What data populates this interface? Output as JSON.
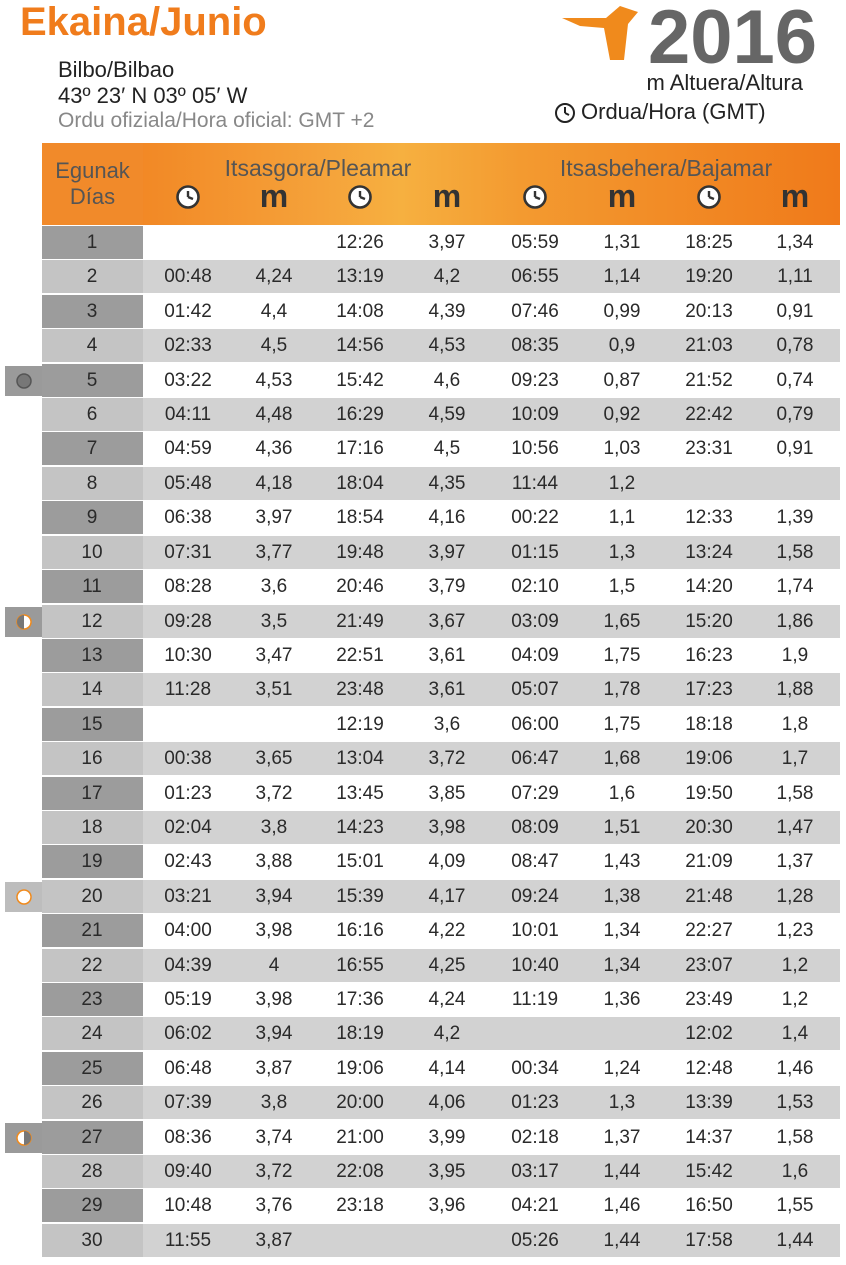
{
  "header": {
    "title": "Ekaina/Junio",
    "location": "Bilbo/Bilbao",
    "coordinates": "43º 23′ N 03º 05′ W",
    "official_time": "Ordu ofiziala/Hora oficial: GMT +2",
    "year": "2016",
    "legend_height": "m Altuera/Altura",
    "legend_time": "Ordua/Hora (GMT)"
  },
  "table": {
    "days_label": [
      "Egunak",
      "Días"
    ],
    "high_tide": "Itsasgora/Pleamar",
    "low_tide": "Itsasbehera/Bajamar",
    "units": [
      "m",
      "m",
      "m",
      "m"
    ],
    "rows": [
      [
        "1",
        null,
        null,
        "12:26",
        "3,97",
        "05:59",
        "1,31",
        "18:25",
        "1,34"
      ],
      [
        "2",
        "00:48",
        "4,24",
        "13:19",
        "4,2",
        "06:55",
        "1,14",
        "19:20",
        "1,11"
      ],
      [
        "3",
        "01:42",
        "4,4",
        "14:08",
        "4,39",
        "07:46",
        "0,99",
        "20:13",
        "0,91"
      ],
      [
        "4",
        "02:33",
        "4,5",
        "14:56",
        "4,53",
        "08:35",
        "0,9",
        "21:03",
        "0,78"
      ],
      [
        "5",
        "03:22",
        "4,53",
        "15:42",
        "4,6",
        "09:23",
        "0,87",
        "21:52",
        "0,74"
      ],
      [
        "6",
        "04:11",
        "4,48",
        "16:29",
        "4,59",
        "10:09",
        "0,92",
        "22:42",
        "0,79"
      ],
      [
        "7",
        "04:59",
        "4,36",
        "17:16",
        "4,5",
        "10:56",
        "1,03",
        "23:31",
        "0,91"
      ],
      [
        "8",
        "05:48",
        "4,18",
        "18:04",
        "4,35",
        "11:44",
        "1,2",
        null,
        null
      ],
      [
        "9",
        "06:38",
        "3,97",
        "18:54",
        "4,16",
        "00:22",
        "1,1",
        "12:33",
        "1,39"
      ],
      [
        "10",
        "07:31",
        "3,77",
        "19:48",
        "3,97",
        "01:15",
        "1,3",
        "13:24",
        "1,58"
      ],
      [
        "11",
        "08:28",
        "3,6",
        "20:46",
        "3,79",
        "02:10",
        "1,5",
        "14:20",
        "1,74"
      ],
      [
        "12",
        "09:28",
        "3,5",
        "21:49",
        "3,67",
        "03:09",
        "1,65",
        "15:20",
        "1,86"
      ],
      [
        "13",
        "10:30",
        "3,47",
        "22:51",
        "3,61",
        "04:09",
        "1,75",
        "16:23",
        "1,9"
      ],
      [
        "14",
        "11:28",
        "3,51",
        "23:48",
        "3,61",
        "05:07",
        "1,78",
        "17:23",
        "1,88"
      ],
      [
        "15",
        null,
        null,
        "12:19",
        "3,6",
        "06:00",
        "1,75",
        "18:18",
        "1,8"
      ],
      [
        "16",
        "00:38",
        "3,65",
        "13:04",
        "3,72",
        "06:47",
        "1,68",
        "19:06",
        "1,7"
      ],
      [
        "17",
        "01:23",
        "3,72",
        "13:45",
        "3,85",
        "07:29",
        "1,6",
        "19:50",
        "1,58"
      ],
      [
        "18",
        "02:04",
        "3,8",
        "14:23",
        "3,98",
        "08:09",
        "1,51",
        "20:30",
        "1,47"
      ],
      [
        "19",
        "02:43",
        "3,88",
        "15:01",
        "4,09",
        "08:47",
        "1,43",
        "21:09",
        "1,37"
      ],
      [
        "20",
        "03:21",
        "3,94",
        "15:39",
        "4,17",
        "09:24",
        "1,38",
        "21:48",
        "1,28"
      ],
      [
        "21",
        "04:00",
        "3,98",
        "16:16",
        "4,22",
        "10:01",
        "1,34",
        "22:27",
        "1,23"
      ],
      [
        "22",
        "04:39",
        "4",
        "16:55",
        "4,25",
        "10:40",
        "1,34",
        "23:07",
        "1,2"
      ],
      [
        "23",
        "05:19",
        "3,98",
        "17:36",
        "4,24",
        "11:19",
        "1,36",
        "23:49",
        "1,2"
      ],
      [
        "24",
        "06:02",
        "3,94",
        "18:19",
        "4,2",
        null,
        null,
        "12:02",
        "1,4"
      ],
      [
        "25",
        "06:48",
        "3,87",
        "19:06",
        "4,14",
        "00:34",
        "1,24",
        "12:48",
        "1,46"
      ],
      [
        "26",
        "07:39",
        "3,8",
        "20:00",
        "4,06",
        "01:23",
        "1,3",
        "13:39",
        "1,53"
      ],
      [
        "27",
        "08:36",
        "3,74",
        "21:00",
        "3,99",
        "02:18",
        "1,37",
        "14:37",
        "1,58"
      ],
      [
        "28",
        "09:40",
        "3,72",
        "22:08",
        "3,95",
        "03:17",
        "1,44",
        "15:42",
        "1,6"
      ],
      [
        "29",
        "10:48",
        "3,76",
        "23:18",
        "3,96",
        "04:21",
        "1,46",
        "16:50",
        "1,55"
      ],
      [
        "30",
        "11:55",
        "3,87",
        null,
        null,
        "05:26",
        "1,44",
        "17:58",
        "1,44"
      ]
    ]
  }
}
